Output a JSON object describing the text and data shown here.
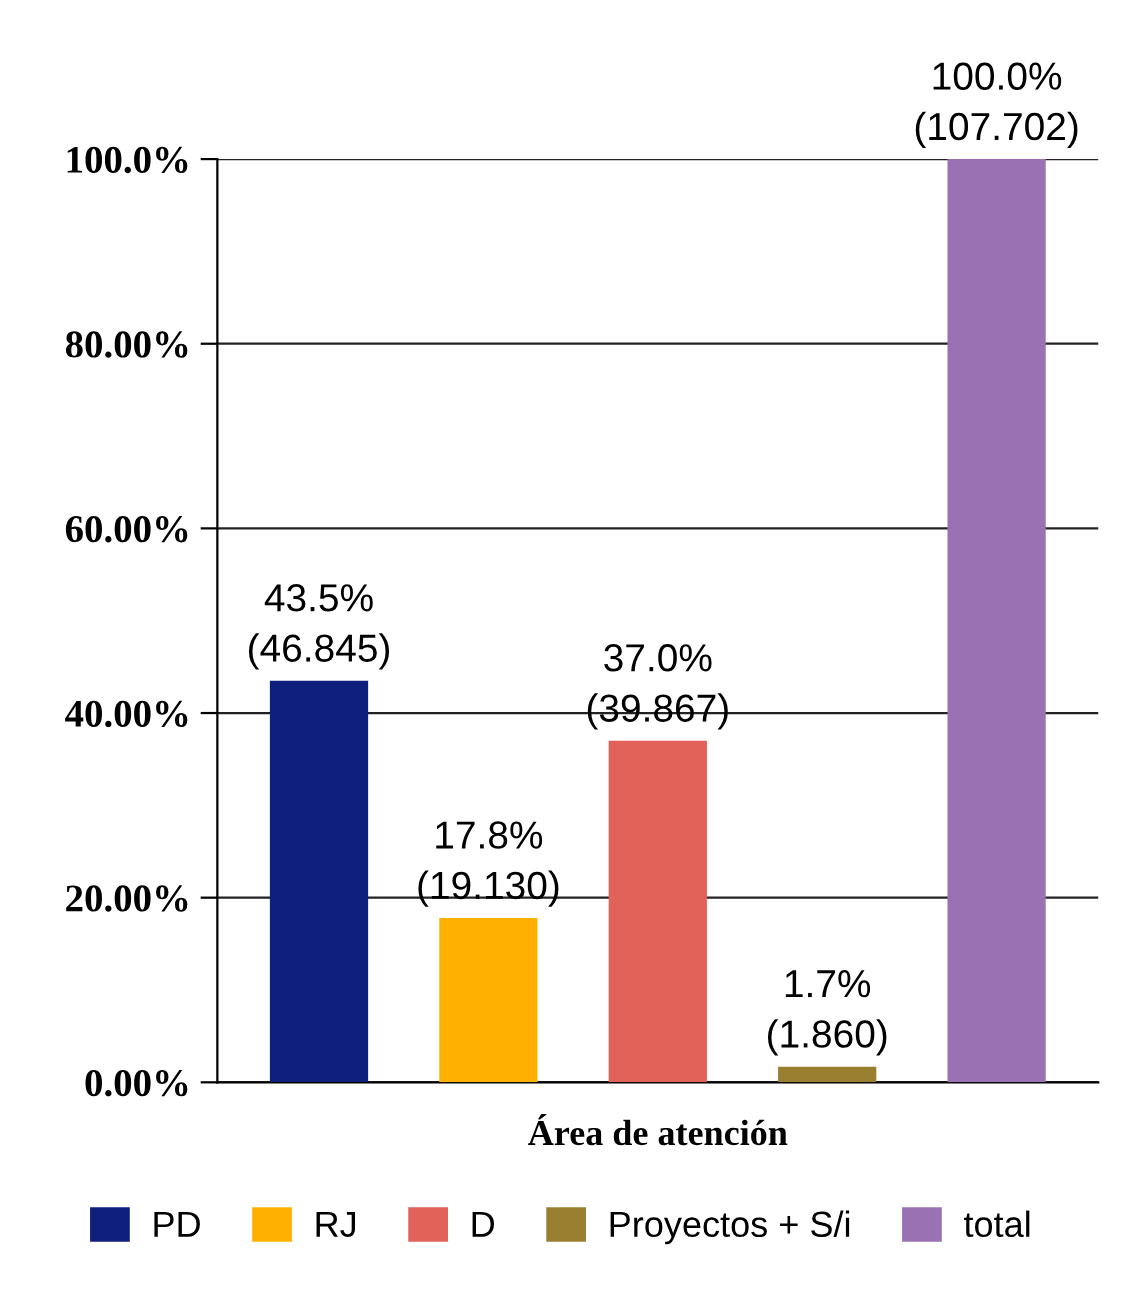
{
  "chart_data": {
    "type": "bar",
    "xlabel": "Área de atención",
    "categories": [
      null,
      null,
      null,
      null,
      null
    ],
    "series": [
      {
        "name": "PD",
        "color": "#0f1f7c",
        "values": [
          43.5,
          null,
          null,
          null,
          null
        ],
        "value_labels": [
          "43.5%\n(46.845)",
          null,
          null,
          null,
          null
        ]
      },
      {
        "name": "RJ",
        "color": "#ffb000",
        "values": [
          null,
          17.8,
          null,
          null,
          null
        ],
        "value_labels": [
          null,
          "17.8%\n(19.130)",
          null,
          null,
          null
        ]
      },
      {
        "name": "D",
        "color": "#e2625a",
        "values": [
          null,
          null,
          37.0,
          null,
          null
        ],
        "value_labels": [
          null,
          null,
          "37.0%\n(39.867)",
          null,
          null
        ]
      },
      {
        "name": "Proyectos + S/i",
        "color": "#9a7f30",
        "values": [
          null,
          null,
          null,
          1.7,
          null
        ],
        "value_labels": [
          null,
          null,
          null,
          "1.7%\n(1.860)",
          null
        ]
      },
      {
        "name": "total",
        "color": "#9a72b4",
        "values": [
          null,
          null,
          null,
          null,
          100.0
        ],
        "value_labels": [
          null,
          null,
          null,
          null,
          "100.0%\n(107.702)"
        ]
      }
    ],
    "ylim": [
      0,
      100
    ],
    "yticks": [
      {
        "value": 0,
        "label": "0.00%"
      },
      {
        "value": 20,
        "label": "20.00%"
      },
      {
        "value": 40,
        "label": "40.00%"
      },
      {
        "value": 60,
        "label": "60.00%"
      },
      {
        "value": 80,
        "label": "80.00%"
      },
      {
        "value": 100,
        "label": "100.0%"
      }
    ],
    "grid": "y",
    "legend": "bottom",
    "tick_labels": "y"
  }
}
